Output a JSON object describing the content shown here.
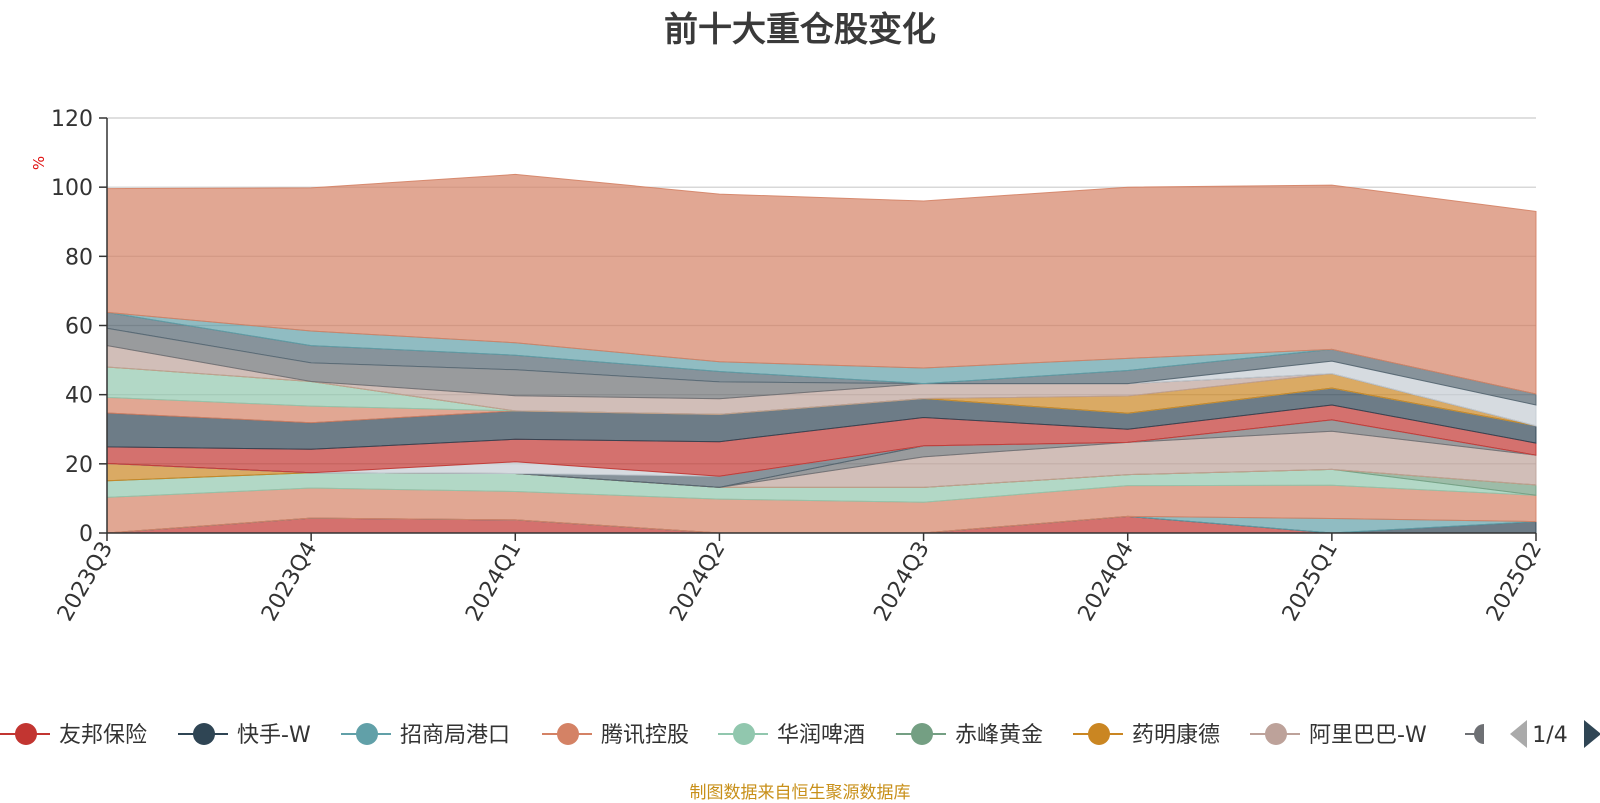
{
  "chart_data": {
    "type": "area",
    "title": "前十大重仓股变化",
    "ylabel": "%",
    "ylim": [
      0,
      120
    ],
    "yticks": [
      "0",
      "20",
      "40",
      "60",
      "80",
      "100",
      "120"
    ],
    "grid": true,
    "categories": [
      "2023Q3",
      "2023Q4",
      "2024Q1",
      "2024Q2",
      "2024Q3",
      "2024Q4",
      "2025Q1",
      "2025Q2"
    ],
    "series": [
      {
        "name": "友邦保险",
        "color": "#c23531",
        "values": [
          0,
          4.3,
          3.8,
          0,
          0,
          4.8,
          0,
          0
        ]
      },
      {
        "name": "快手-W",
        "color": "#2f4554",
        "values": [
          0,
          0,
          0,
          0,
          0,
          0,
          0,
          3.3
        ]
      },
      {
        "name": "招商局港口",
        "color": "#61a0a8",
        "values": [
          0,
          0,
          0,
          0,
          0,
          0,
          4.2,
          0
        ]
      },
      {
        "name": "腾讯控股",
        "color": "#d48265",
        "values": [
          10.3,
          8.7,
          8.2,
          9.8,
          8.9,
          8.9,
          9.6,
          7.6
        ]
      },
      {
        "name": "华润啤酒",
        "color": "#91c7ae",
        "values": [
          4.8,
          4.4,
          5.2,
          3.4,
          4.3,
          3.2,
          4.6,
          0
        ]
      },
      {
        "name": "赤峰黄金",
        "color": "#749f83",
        "values": [
          0,
          0,
          0,
          0,
          0,
          0,
          0,
          3.0
        ]
      },
      {
        "name": "药明康德",
        "color": "#ca8622",
        "values": [
          5.0,
          0,
          0,
          0,
          0,
          0,
          0,
          0
        ]
      },
      {
        "name": "阿里巴巴-W",
        "color": "#bda29a",
        "values": [
          0,
          0,
          0,
          0,
          8.8,
          9.3,
          11.0,
          8.6
        ]
      },
      {
        "name": "",
        "color": "#6e7074",
        "values": [
          0,
          0,
          0,
          0,
          3.2,
          0,
          3.3,
          0
        ]
      },
      {
        "name": "",
        "color": "#546570",
        "values": [
          0,
          0,
          0,
          3.2,
          0,
          0,
          0,
          0
        ]
      },
      {
        "name": "",
        "color": "#c4ccd3",
        "values": [
          0,
          0,
          3.4,
          0,
          0,
          0,
          0,
          0
        ]
      },
      {
        "name": "",
        "color": "#c23531",
        "values": [
          4.8,
          6.8,
          6.5,
          10.0,
          8.2,
          3.8,
          4.3,
          3.5
        ]
      },
      {
        "name": "",
        "color": "#2f4554",
        "values": [
          9.8,
          7.7,
          8.2,
          7.9,
          5.5,
          4.6,
          4.9,
          5.0
        ]
      },
      {
        "name": "",
        "color": "#d48265",
        "values": [
          4.5,
          4.8,
          0,
          0,
          0,
          0,
          0,
          0
        ]
      },
      {
        "name": "",
        "color": "#91c7ae",
        "values": [
          8.8,
          7.1,
          0,
          0,
          0,
          0,
          0,
          0
        ]
      },
      {
        "name": "",
        "color": "#ca8622",
        "values": [
          0,
          0,
          0,
          0,
          0,
          5.0,
          4.2,
          0
        ]
      },
      {
        "name": "",
        "color": "#bda29a",
        "values": [
          6.2,
          0,
          4.4,
          4.5,
          4.3,
          3.6,
          0,
          0
        ]
      },
      {
        "name": "",
        "color": "#6e7074",
        "values": [
          5.0,
          5.4,
          7.5,
          4.9,
          0,
          0,
          0,
          0
        ]
      },
      {
        "name": "",
        "color": "#c4ccd3",
        "values": [
          0,
          0,
          0,
          0,
          0,
          0,
          3.6,
          6.0
        ]
      },
      {
        "name": "",
        "color": "#546570",
        "values": [
          4.6,
          5.0,
          4.2,
          3.0,
          0,
          3.8,
          3.4,
          3.2
        ]
      },
      {
        "name": "",
        "color": "#61a0a8",
        "values": [
          0,
          4.2,
          3.6,
          2.8,
          4.5,
          3.5,
          0,
          0
        ]
      },
      {
        "name": "",
        "color": "#d48265",
        "values": [
          35.8,
          41.4,
          48.7,
          48.5,
          48.3,
          49.5,
          47.5,
          52.8
        ]
      }
    ]
  },
  "legend": {
    "page": "1/4"
  },
  "source": "制图数据来自恒生聚源数据库"
}
